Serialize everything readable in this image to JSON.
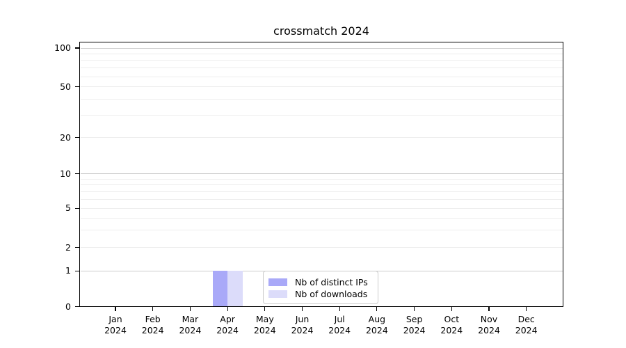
{
  "chart_data": {
    "type": "bar",
    "title": "crossmatch 2024",
    "categories": [
      "Jan",
      "Feb",
      "Mar",
      "Apr",
      "May",
      "Jun",
      "Jul",
      "Aug",
      "Sep",
      "Oct",
      "Nov",
      "Dec"
    ],
    "category_year": "2024",
    "series": [
      {
        "name": "Nb of distinct IPs",
        "color": "#a9a9f8",
        "values": [
          0,
          0,
          0,
          1,
          0,
          0,
          0,
          0,
          0,
          0,
          0,
          0
        ]
      },
      {
        "name": "Nb of downloads",
        "color": "#dcdcfa",
        "values": [
          0,
          0,
          0,
          1,
          0,
          0,
          0,
          0,
          0,
          0,
          0,
          0
        ]
      }
    ],
    "xlabel": "",
    "ylabel": "",
    "y_scale": "symlog",
    "y_ticks": [
      0,
      1,
      2,
      5,
      10,
      20,
      50,
      100
    ],
    "y_minor_gridlines": [
      2,
      3,
      4,
      5,
      6,
      7,
      8,
      9,
      20,
      30,
      40,
      50,
      60,
      70,
      80,
      90
    ],
    "y_major_gridlines": [
      1,
      10,
      100
    ],
    "ylim": [
      0,
      115
    ],
    "grid": "horizontal, major + minor, on",
    "legend": {
      "position": "bottom-center"
    },
    "colors": {
      "background": "#ffffff",
      "axis": "#000000",
      "text": "#000000",
      "major_grid": "#cccccc",
      "minor_grid": "#ededed",
      "legend_border": "#cccccc"
    }
  }
}
